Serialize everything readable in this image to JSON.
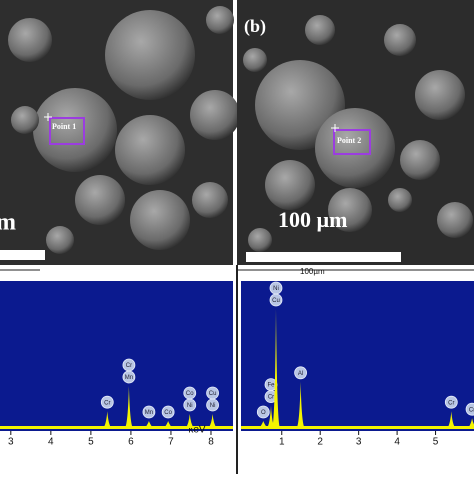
{
  "sem_images": [
    {
      "point_label": "Point 1",
      "scale_label": "m"
    },
    {
      "panel_label": "(b)",
      "point_label": "Point 2",
      "scale_label": "100 µm"
    }
  ],
  "spectra": [
    {
      "x_unit": "keV",
      "xlim": [
        2.73,
        8.55
      ],
      "xticks": [
        3,
        4,
        5,
        6,
        7,
        8
      ],
      "peaks": [
        {
          "x": 5.41,
          "height": 0.12,
          "labels": [
            "Cr"
          ]
        },
        {
          "x": 5.95,
          "height": 0.3,
          "labels": [
            "Mn",
            "Cr"
          ]
        },
        {
          "x": 6.45,
          "height": 0.05,
          "labels": [
            "Mn"
          ]
        },
        {
          "x": 6.93,
          "height": 0.05,
          "labels": [
            "Co"
          ]
        },
        {
          "x": 7.47,
          "height": 0.1,
          "labels": [
            "Ni",
            "Co"
          ]
        },
        {
          "x": 8.04,
          "height": 0.1,
          "labels": [
            "Ni",
            "Cu"
          ]
        }
      ]
    },
    {
      "header": "100µm",
      "xlim": [
        -0.06,
        6.0
      ],
      "xticks": [
        1,
        2,
        3,
        4,
        5
      ],
      "peaks": [
        {
          "x": 0.52,
          "height": 0.05,
          "labels": [
            "O"
          ]
        },
        {
          "x": 0.72,
          "height": 0.16,
          "labels": [
            "Cr",
            "Fe"
          ]
        },
        {
          "x": 0.85,
          "height": 0.85,
          "labels": [
            "Cu",
            "Ni"
          ]
        },
        {
          "x": 1.49,
          "height": 0.33,
          "labels": [
            "Al"
          ]
        },
        {
          "x": 5.41,
          "height": 0.12,
          "labels": [
            "Cr"
          ]
        },
        {
          "x": 5.95,
          "height": 0.07,
          "labels": [
            "Cr"
          ]
        }
      ]
    }
  ]
}
